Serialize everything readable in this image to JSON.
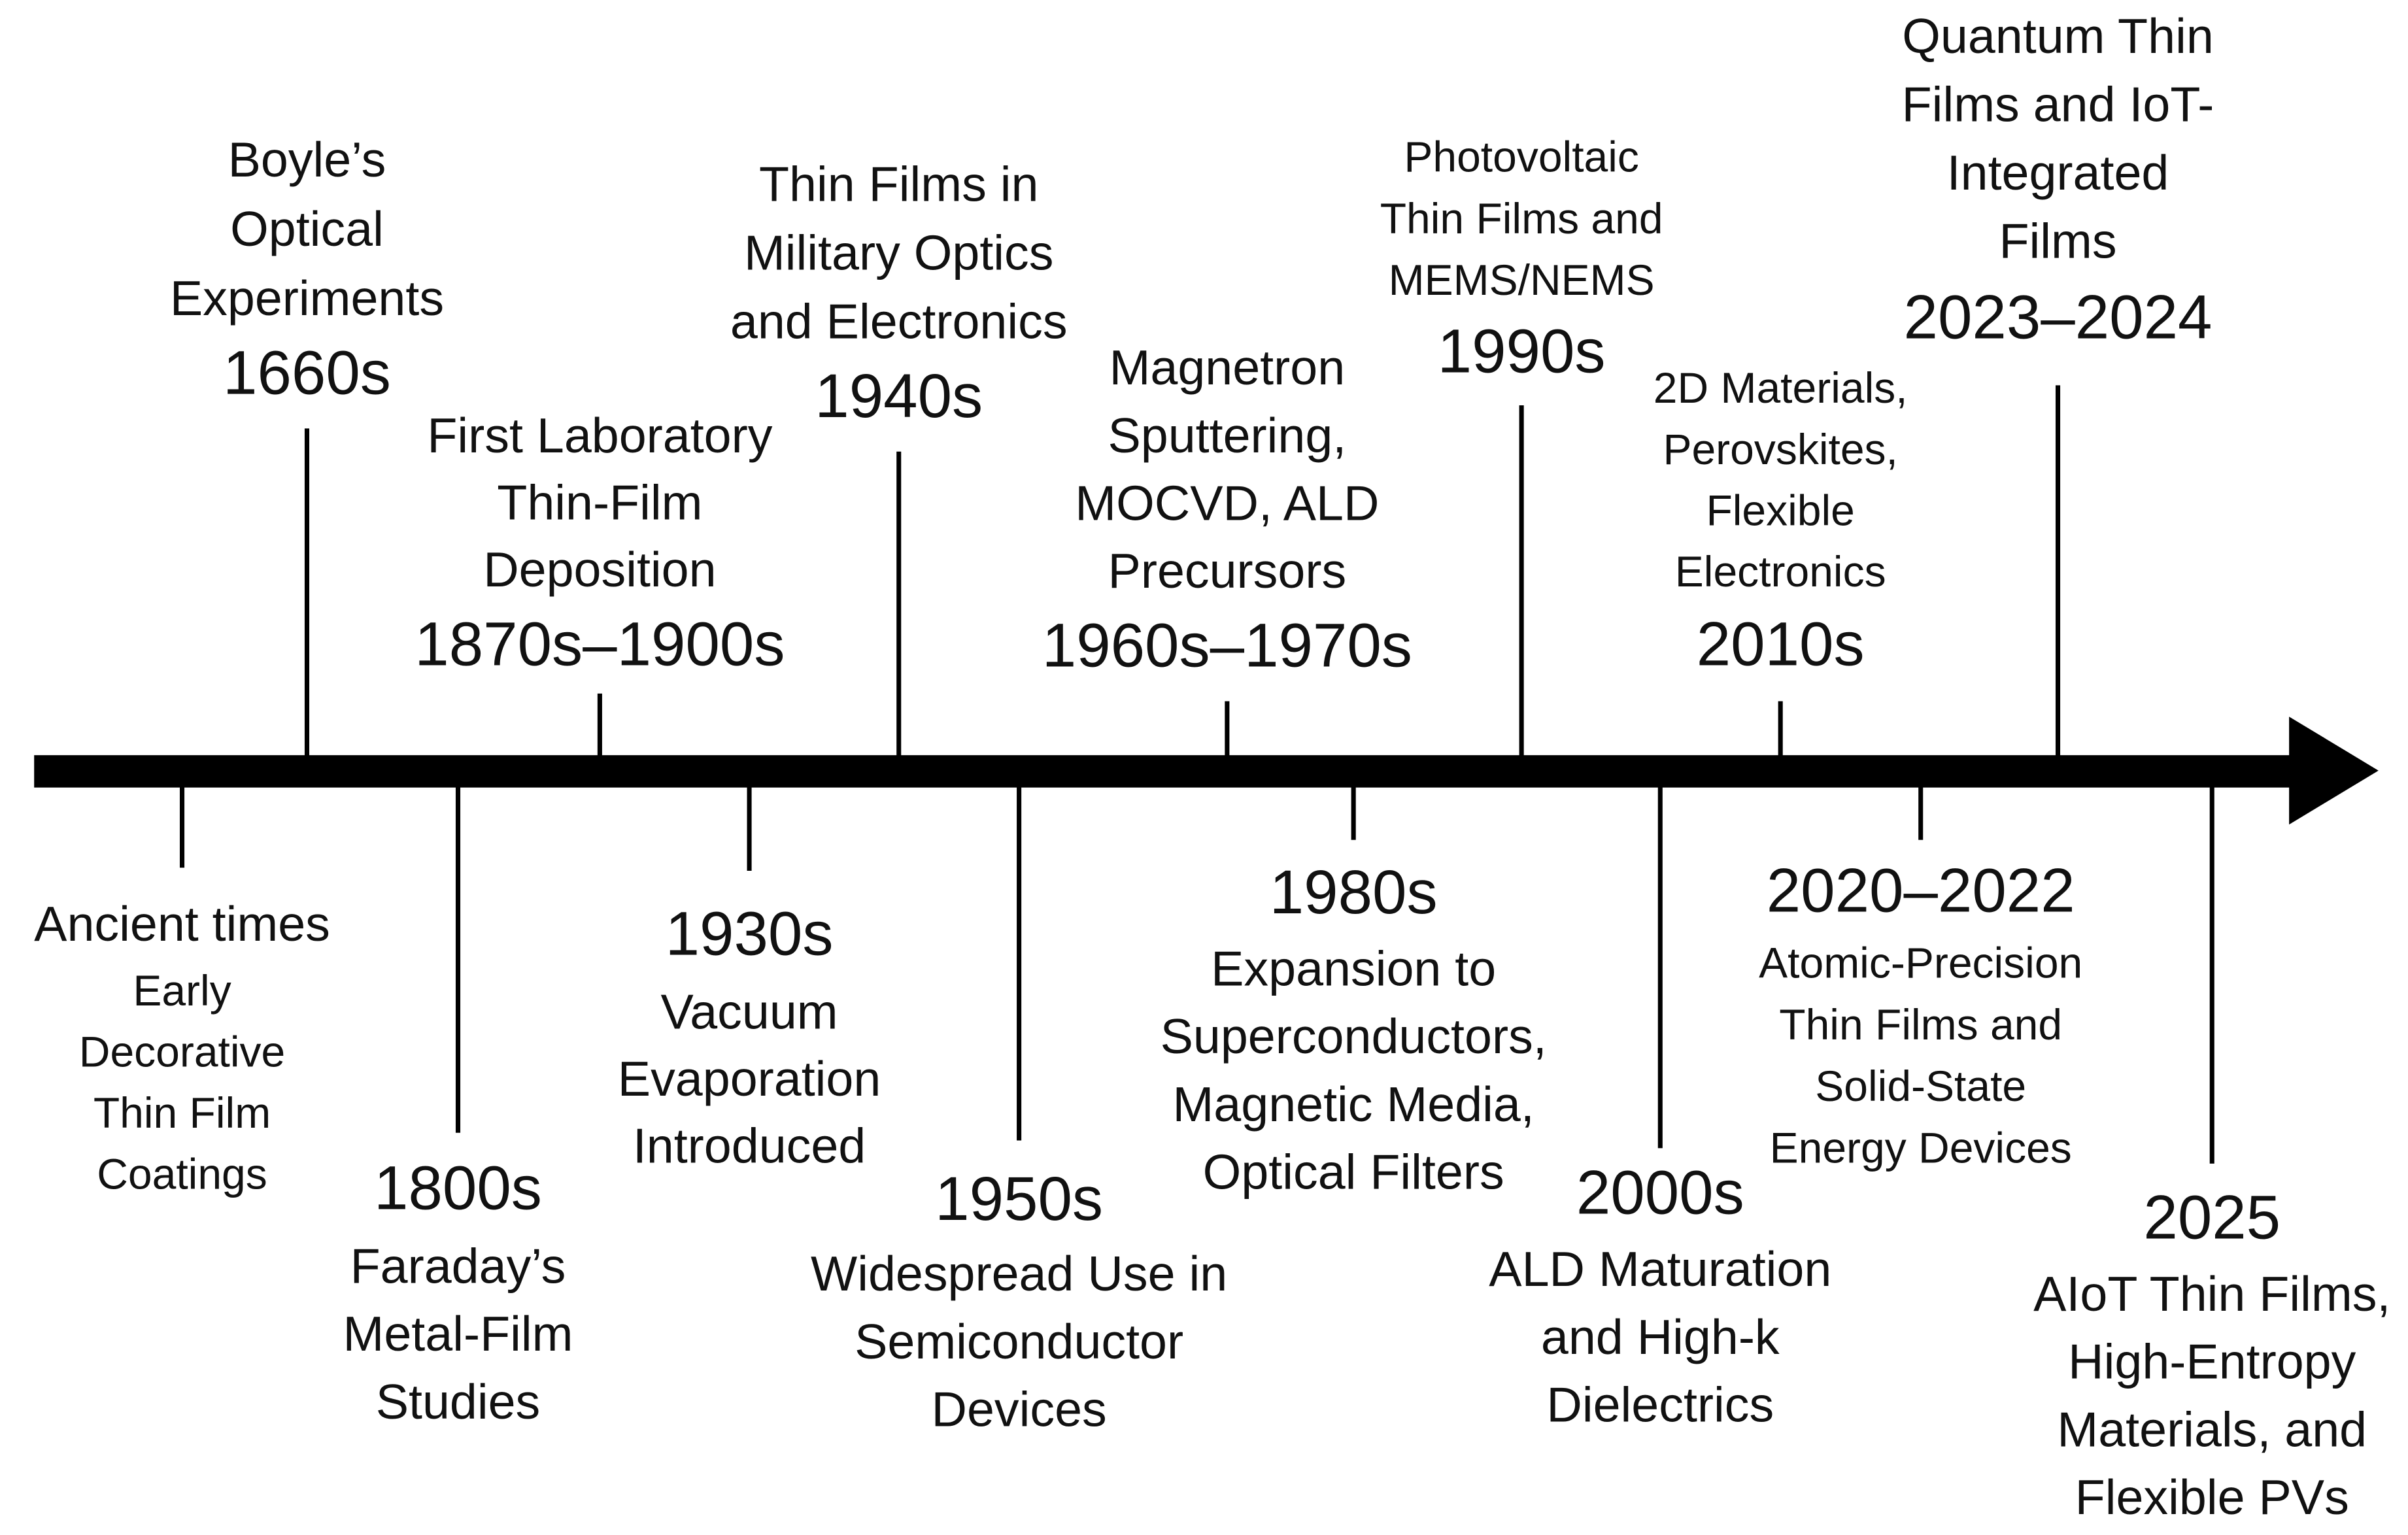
{
  "events": [
    {
      "era": "Ancient times",
      "lines": [
        "Early",
        "Decorative",
        "Thin Film",
        "Coatings"
      ]
    },
    {
      "era": "1660s",
      "lines": [
        "Boyle’s",
        "Optical",
        "Experiments"
      ]
    },
    {
      "era": "1800s",
      "lines": [
        "Faraday’s",
        "Metal-Film",
        "Studies"
      ]
    },
    {
      "era": "1870s–1900s",
      "lines": [
        "First Laboratory",
        "Thin-Film",
        "Deposition"
      ]
    },
    {
      "era": "1930s",
      "lines": [
        "Vacuum",
        "Evaporation",
        "Introduced"
      ]
    },
    {
      "era": "1940s",
      "lines": [
        "Thin Films in",
        "Military Optics",
        "and Electronics"
      ]
    },
    {
      "era": "1950s",
      "lines": [
        "Widespread Use in",
        "Semiconductor",
        "Devices"
      ]
    },
    {
      "era": "1960s–1970s",
      "lines": [
        "Magnetron",
        "Sputtering,",
        "MOCVD, ALD",
        "Precursors"
      ]
    },
    {
      "era": "1980s",
      "lines": [
        "Expansion to",
        "Superconductors,",
        "Magnetic Media,",
        "Optical Filters"
      ]
    },
    {
      "era": "1990s",
      "lines": [
        "Photovoltaic",
        "Thin Films and",
        "MEMS/NEMS"
      ]
    },
    {
      "era": "2000s",
      "lines": [
        "ALD Maturation",
        "and High-k",
        "Dielectrics"
      ]
    },
    {
      "era": "2010s",
      "lines": [
        "2D Materials,",
        "Perovskites,",
        "Flexible",
        "Electronics"
      ]
    },
    {
      "era": "2020–2022",
      "lines": [
        "Atomic-Precision",
        "Thin Films and",
        "Solid-State",
        "Energy Devices"
      ]
    },
    {
      "era": "2023–2024",
      "lines": [
        "Quantum Thin",
        "Films and IoT-",
        "Integrated",
        "Films"
      ]
    },
    {
      "era": "2025",
      "lines": [
        "AIoT Thin Films,",
        "High-Entropy",
        "Materials, and",
        "Flexible PVs"
      ]
    }
  ]
}
